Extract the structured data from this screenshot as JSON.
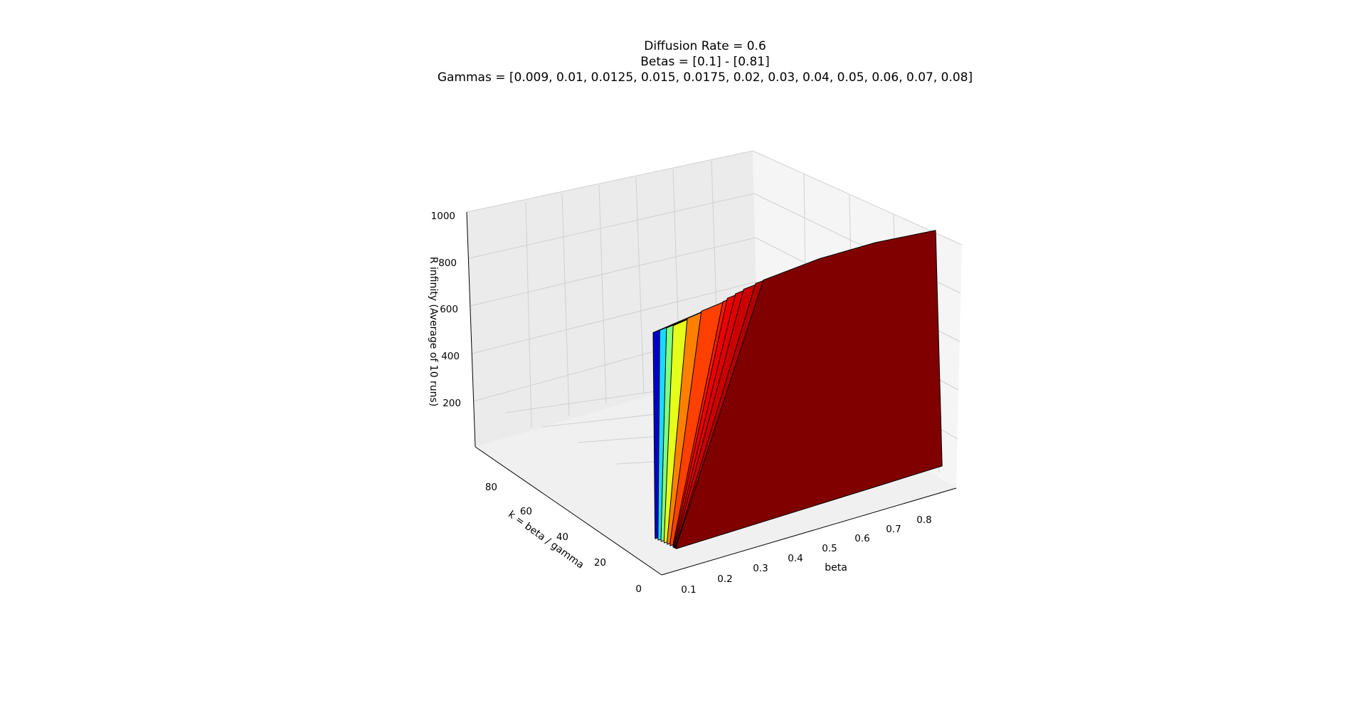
{
  "chart_data": {
    "type": "surface3d",
    "title": [
      "Diffusion Rate = 0.6",
      "Betas = [0.1] - [0.81]",
      "Gammas = [0.009, 0.01, 0.0125, 0.015, 0.0175, 0.02, 0.03, 0.04, 0.05, 0.06, 0.07, 0.08]"
    ],
    "xlabel": "beta",
    "ylabel": "k = beta / gamma",
    "zlabel": "R infinity (Average of 10 runs)",
    "x_ticks": [
      "0.1",
      "0.2",
      "0.3",
      "0.4",
      "0.5",
      "0.6",
      "0.7",
      "0.8"
    ],
    "y_ticks": [
      "0",
      "20",
      "40",
      "60",
      "80"
    ],
    "z_ticks": [
      "200",
      "400",
      "600",
      "800",
      "1000"
    ],
    "xlim": [
      0.07,
      0.84
    ],
    "ylim": [
      0,
      92
    ],
    "zlim": [
      0,
      1000
    ],
    "grid": true,
    "colormap": "jet",
    "series": [
      {
        "gamma": 0.009,
        "color": "#800000",
        "points": [
          [
            0.1,
            10
          ],
          [
            0.35,
            935
          ],
          [
            0.5,
            950
          ],
          [
            0.65,
            945
          ],
          [
            0.81,
            920
          ]
        ]
      },
      {
        "gamma": 0.01,
        "color": "#b30000",
        "points": [
          [
            0.1,
            10
          ],
          [
            0.33,
            930
          ],
          [
            0.5,
            945
          ],
          [
            0.65,
            940
          ],
          [
            0.81,
            915
          ]
        ]
      },
      {
        "gamma": 0.0125,
        "color": "#cc0000",
        "points": [
          [
            0.1,
            10
          ],
          [
            0.3,
            920
          ],
          [
            0.5,
            940
          ],
          [
            0.65,
            935
          ],
          [
            0.81,
            910
          ]
        ]
      },
      {
        "gamma": 0.015,
        "color": "#e00000",
        "points": [
          [
            0.1,
            10
          ],
          [
            0.28,
            910
          ],
          [
            0.5,
            935
          ],
          [
            0.65,
            930
          ],
          [
            0.81,
            900
          ]
        ]
      },
      {
        "gamma": 0.0175,
        "color": "#ee0000",
        "points": [
          [
            0.1,
            10
          ],
          [
            0.26,
            900
          ],
          [
            0.5,
            930
          ],
          [
            0.65,
            925
          ],
          [
            0.81,
            895
          ]
        ]
      },
      {
        "gamma": 0.02,
        "color": "#ff1a00",
        "points": [
          [
            0.1,
            10
          ],
          [
            0.25,
            890
          ],
          [
            0.5,
            925
          ],
          [
            0.65,
            920
          ],
          [
            0.81,
            890
          ]
        ]
      },
      {
        "gamma": 0.03,
        "color": "#ff4000",
        "points": [
          [
            0.1,
            10
          ],
          [
            0.2,
            870
          ],
          [
            0.5,
            915
          ],
          [
            0.65,
            910
          ],
          [
            0.81,
            880
          ]
        ]
      },
      {
        "gamma": 0.04,
        "color": "#ff8000",
        "points": [
          [
            0.1,
            10
          ],
          [
            0.17,
            850
          ],
          [
            0.5,
            905
          ],
          [
            0.65,
            900
          ],
          [
            0.81,
            870
          ]
        ]
      },
      {
        "gamma": 0.05,
        "color": "#e5ff1a",
        "points": [
          [
            0.1,
            10
          ],
          [
            0.14,
            830
          ],
          [
            0.5,
            895
          ],
          [
            0.65,
            890
          ],
          [
            0.81,
            860
          ]
        ]
      },
      {
        "gamma": 0.06,
        "color": "#80ff80",
        "points": [
          [
            0.1,
            10
          ],
          [
            0.13,
            820
          ],
          [
            0.5,
            885
          ],
          [
            0.65,
            880
          ],
          [
            0.81,
            850
          ]
        ]
      },
      {
        "gamma": 0.07,
        "color": "#1ad9ff",
        "points": [
          [
            0.1,
            10
          ],
          [
            0.12,
            810
          ],
          [
            0.5,
            875
          ],
          [
            0.65,
            870
          ],
          [
            0.81,
            840
          ]
        ]
      },
      {
        "gamma": 0.08,
        "color": "#0000cc",
        "points": [
          [
            0.1,
            10
          ],
          [
            0.11,
            800
          ],
          [
            0.5,
            865
          ],
          [
            0.65,
            860
          ],
          [
            0.81,
            830
          ]
        ]
      }
    ]
  }
}
